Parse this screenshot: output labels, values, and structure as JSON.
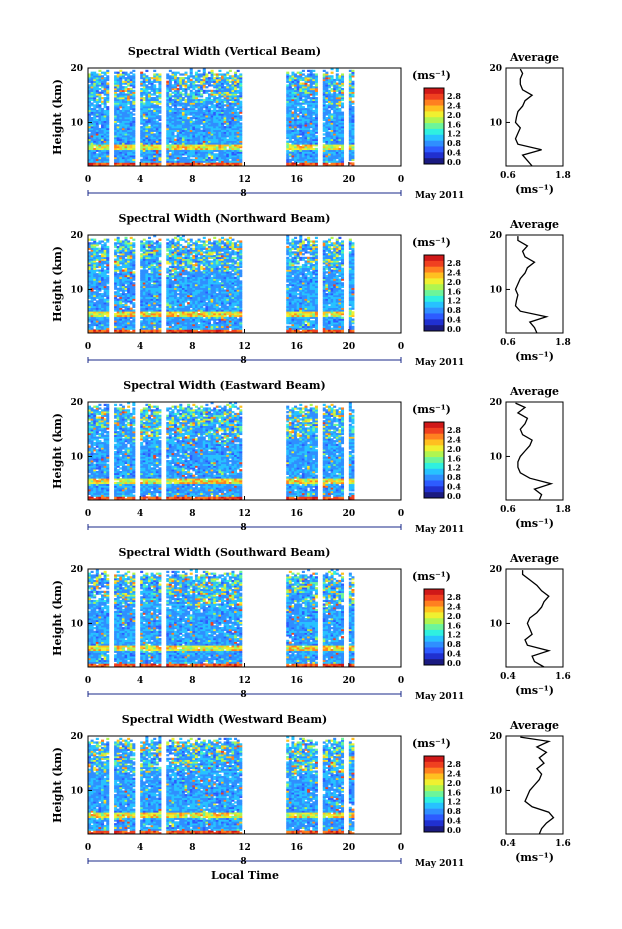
{
  "figure": {
    "xlabel": "Local Time",
    "date_label": "May 2011",
    "day_label": "8"
  },
  "colorbar": {
    "unit": "(ms⁻¹)",
    "ticks": [
      "0.0",
      "0.4",
      "0.8",
      "1.2",
      "1.6",
      "2.0",
      "2.4",
      "2.8"
    ],
    "colors": [
      "#1a1a80",
      "#2030d0",
      "#2d5bff",
      "#2f8fff",
      "#27c2ff",
      "#2ff0e0",
      "#6cf59a",
      "#b0f550",
      "#f0f030",
      "#ffc020",
      "#ff8020",
      "#f04020",
      "#d01818"
    ]
  },
  "chart_data": [
    {
      "type": "heatmap",
      "title": "Spectral Width (Vertical Beam)",
      "ylabel": "Height (km)",
      "x_ticks": [
        "0",
        "4",
        "8",
        "12",
        "16",
        "20",
        "0"
      ],
      "xlim": [
        0,
        24
      ],
      "y_ticks": [
        "20",
        "10"
      ],
      "ylim": [
        2,
        20
      ],
      "value_unit": "ms⁻¹",
      "value_range": [
        0.0,
        2.8
      ],
      "gaps_local_time": [
        [
          1.6,
          2.0
        ],
        [
          3.6,
          4.0
        ],
        [
          5.6,
          6.0
        ],
        [
          11.8,
          12.2
        ],
        [
          12.2,
          15.3
        ],
        [
          17.6,
          18.0
        ],
        [
          19.6,
          20.0
        ],
        [
          20.5,
          24.0
        ]
      ],
      "profile": {
        "title": "Average",
        "ylim": [
          2,
          20
        ],
        "xlim": [
          0.6,
          1.8
        ],
        "x_ticks": [
          "0.6",
          "1.8"
        ],
        "y_ticks": [
          "20",
          "10"
        ],
        "xlabel": "(ms⁻¹)",
        "heights": [
          2,
          3,
          4,
          5,
          6,
          7,
          8,
          9,
          10,
          11,
          12,
          13,
          14,
          15,
          16,
          17,
          18,
          19,
          19.8
        ],
        "values": [
          1.15,
          1.05,
          0.95,
          1.35,
          0.85,
          0.8,
          0.85,
          0.9,
          0.8,
          0.82,
          0.85,
          0.95,
          1.0,
          1.15,
          0.95,
          0.9,
          0.9,
          0.95,
          0.9
        ]
      }
    },
    {
      "type": "heatmap",
      "title": "Spectral Width (Northward Beam)",
      "ylabel": "Height (km)",
      "x_ticks": [
        "0",
        "4",
        "8",
        "12",
        "16",
        "20",
        "0"
      ],
      "xlim": [
        0,
        24
      ],
      "y_ticks": [
        "20",
        "10"
      ],
      "ylim": [
        2,
        20
      ],
      "value_unit": "ms⁻¹",
      "value_range": [
        0.0,
        2.8
      ],
      "gaps_local_time": [
        [
          1.6,
          2.0
        ],
        [
          3.6,
          4.0
        ],
        [
          5.6,
          6.0
        ],
        [
          11.8,
          12.2
        ],
        [
          12.2,
          15.3
        ],
        [
          17.6,
          18.0
        ],
        [
          19.6,
          20.0
        ],
        [
          20.5,
          24.0
        ]
      ],
      "profile": {
        "title": "Average",
        "ylim": [
          2,
          20
        ],
        "xlim": [
          0.6,
          1.8
        ],
        "x_ticks": [
          "0.6",
          "1.8"
        ],
        "y_ticks": [
          "20",
          "10"
        ],
        "xlabel": "(ms⁻¹)",
        "heights": [
          2,
          3,
          4,
          5,
          6,
          7,
          8,
          9,
          10,
          11,
          12,
          13,
          14,
          15,
          16,
          17,
          18,
          19,
          19.8
        ],
        "values": [
          1.25,
          1.2,
          1.1,
          1.45,
          0.9,
          0.8,
          0.82,
          0.85,
          0.8,
          0.85,
          0.9,
          1.0,
          1.05,
          1.2,
          1.0,
          0.95,
          1.05,
          0.85,
          0.85
        ]
      }
    },
    {
      "type": "heatmap",
      "title": "Spectral Width (Eastward Beam)",
      "ylabel": "Height (km)",
      "x_ticks": [
        "0",
        "4",
        "8",
        "12",
        "16",
        "20",
        "0"
      ],
      "xlim": [
        0,
        24
      ],
      "y_ticks": [
        "20",
        "10"
      ],
      "ylim": [
        2,
        20
      ],
      "value_unit": "ms⁻¹",
      "value_range": [
        0.0,
        2.8
      ],
      "gaps_local_time": [
        [
          1.6,
          2.0
        ],
        [
          3.6,
          4.0
        ],
        [
          5.6,
          6.0
        ],
        [
          11.8,
          12.2
        ],
        [
          12.2,
          15.3
        ],
        [
          17.6,
          18.0
        ],
        [
          19.6,
          20.0
        ],
        [
          20.5,
          24.0
        ]
      ],
      "profile": {
        "title": "Average",
        "ylim": [
          2,
          20
        ],
        "xlim": [
          0.6,
          1.8
        ],
        "x_ticks": [
          "0.6",
          "1.8"
        ],
        "y_ticks": [
          "20",
          "10"
        ],
        "xlabel": "(ms⁻¹)",
        "heights": [
          2,
          3,
          4,
          5,
          6,
          7,
          8,
          9,
          10,
          11,
          12,
          13,
          14,
          15,
          16,
          17,
          18,
          19,
          19.8
        ],
        "values": [
          1.3,
          1.35,
          1.2,
          1.55,
          1.1,
          0.9,
          0.85,
          0.85,
          0.9,
          1.0,
          1.1,
          1.15,
          0.95,
          0.9,
          1.0,
          1.05,
          0.85,
          1.0,
          0.8
        ]
      }
    },
    {
      "type": "heatmap",
      "title": "Spectral Width (Southward Beam)",
      "ylabel": "Height (km)",
      "x_ticks": [
        "0",
        "4",
        "8",
        "12",
        "16",
        "20",
        "0"
      ],
      "xlim": [
        0,
        24
      ],
      "y_ticks": [
        "20",
        "10"
      ],
      "ylim": [
        2,
        20
      ],
      "value_unit": "ms⁻¹",
      "value_range": [
        0.0,
        2.8
      ],
      "gaps_local_time": [
        [
          1.6,
          2.0
        ],
        [
          3.6,
          4.0
        ],
        [
          5.6,
          6.0
        ],
        [
          11.8,
          12.2
        ],
        [
          12.2,
          15.3
        ],
        [
          17.6,
          18.0
        ],
        [
          19.6,
          20.0
        ],
        [
          20.5,
          24.0
        ]
      ],
      "profile": {
        "title": "Average",
        "ylim": [
          2,
          20
        ],
        "xlim": [
          0.4,
          1.6
        ],
        "x_ticks": [
          "0.4",
          "1.6"
        ],
        "y_ticks": [
          "20",
          "10"
        ],
        "xlabel": "(ms⁻¹)",
        "heights": [
          2,
          3,
          4,
          5,
          6,
          7,
          8,
          9,
          10,
          11,
          12,
          13,
          14,
          15,
          16,
          17,
          18,
          19,
          19.8
        ],
        "values": [
          1.2,
          1.0,
          0.95,
          1.3,
          0.85,
          0.8,
          0.95,
          0.9,
          0.85,
          0.9,
          1.05,
          1.15,
          1.2,
          1.3,
          1.15,
          1.05,
          0.9,
          0.75,
          0.75
        ]
      }
    },
    {
      "type": "heatmap",
      "title": "Spectral Width (Westward Beam)",
      "ylabel": "Height (km)",
      "x_ticks": [
        "0",
        "4",
        "8",
        "12",
        "16",
        "20",
        "0"
      ],
      "xlim": [
        0,
        24
      ],
      "y_ticks": [
        "20",
        "10"
      ],
      "ylim": [
        2,
        20
      ],
      "value_unit": "ms⁻¹",
      "value_range": [
        0.0,
        2.8
      ],
      "gaps_local_time": [
        [
          1.6,
          2.0
        ],
        [
          3.6,
          4.0
        ],
        [
          5.6,
          6.0
        ],
        [
          11.8,
          12.2
        ],
        [
          12.2,
          15.3
        ],
        [
          17.6,
          18.0
        ],
        [
          19.6,
          20.0
        ],
        [
          20.5,
          24.0
        ]
      ],
      "profile": {
        "title": "Average",
        "ylim": [
          2,
          20
        ],
        "xlim": [
          0.4,
          1.6
        ],
        "x_ticks": [
          "0.4",
          "1.6"
        ],
        "y_ticks": [
          "20",
          "10"
        ],
        "xlabel": "(ms⁻¹)",
        "heights": [
          2,
          3,
          4,
          5,
          6,
          7,
          8,
          9,
          10,
          11,
          12,
          13,
          14,
          15,
          16,
          17,
          18,
          19,
          19.8
        ],
        "values": [
          1.1,
          1.15,
          1.25,
          1.4,
          1.3,
          0.95,
          0.8,
          0.85,
          0.9,
          1.0,
          1.1,
          1.15,
          1.05,
          1.2,
          1.1,
          1.25,
          1.05,
          1.3,
          0.7
        ]
      }
    }
  ]
}
